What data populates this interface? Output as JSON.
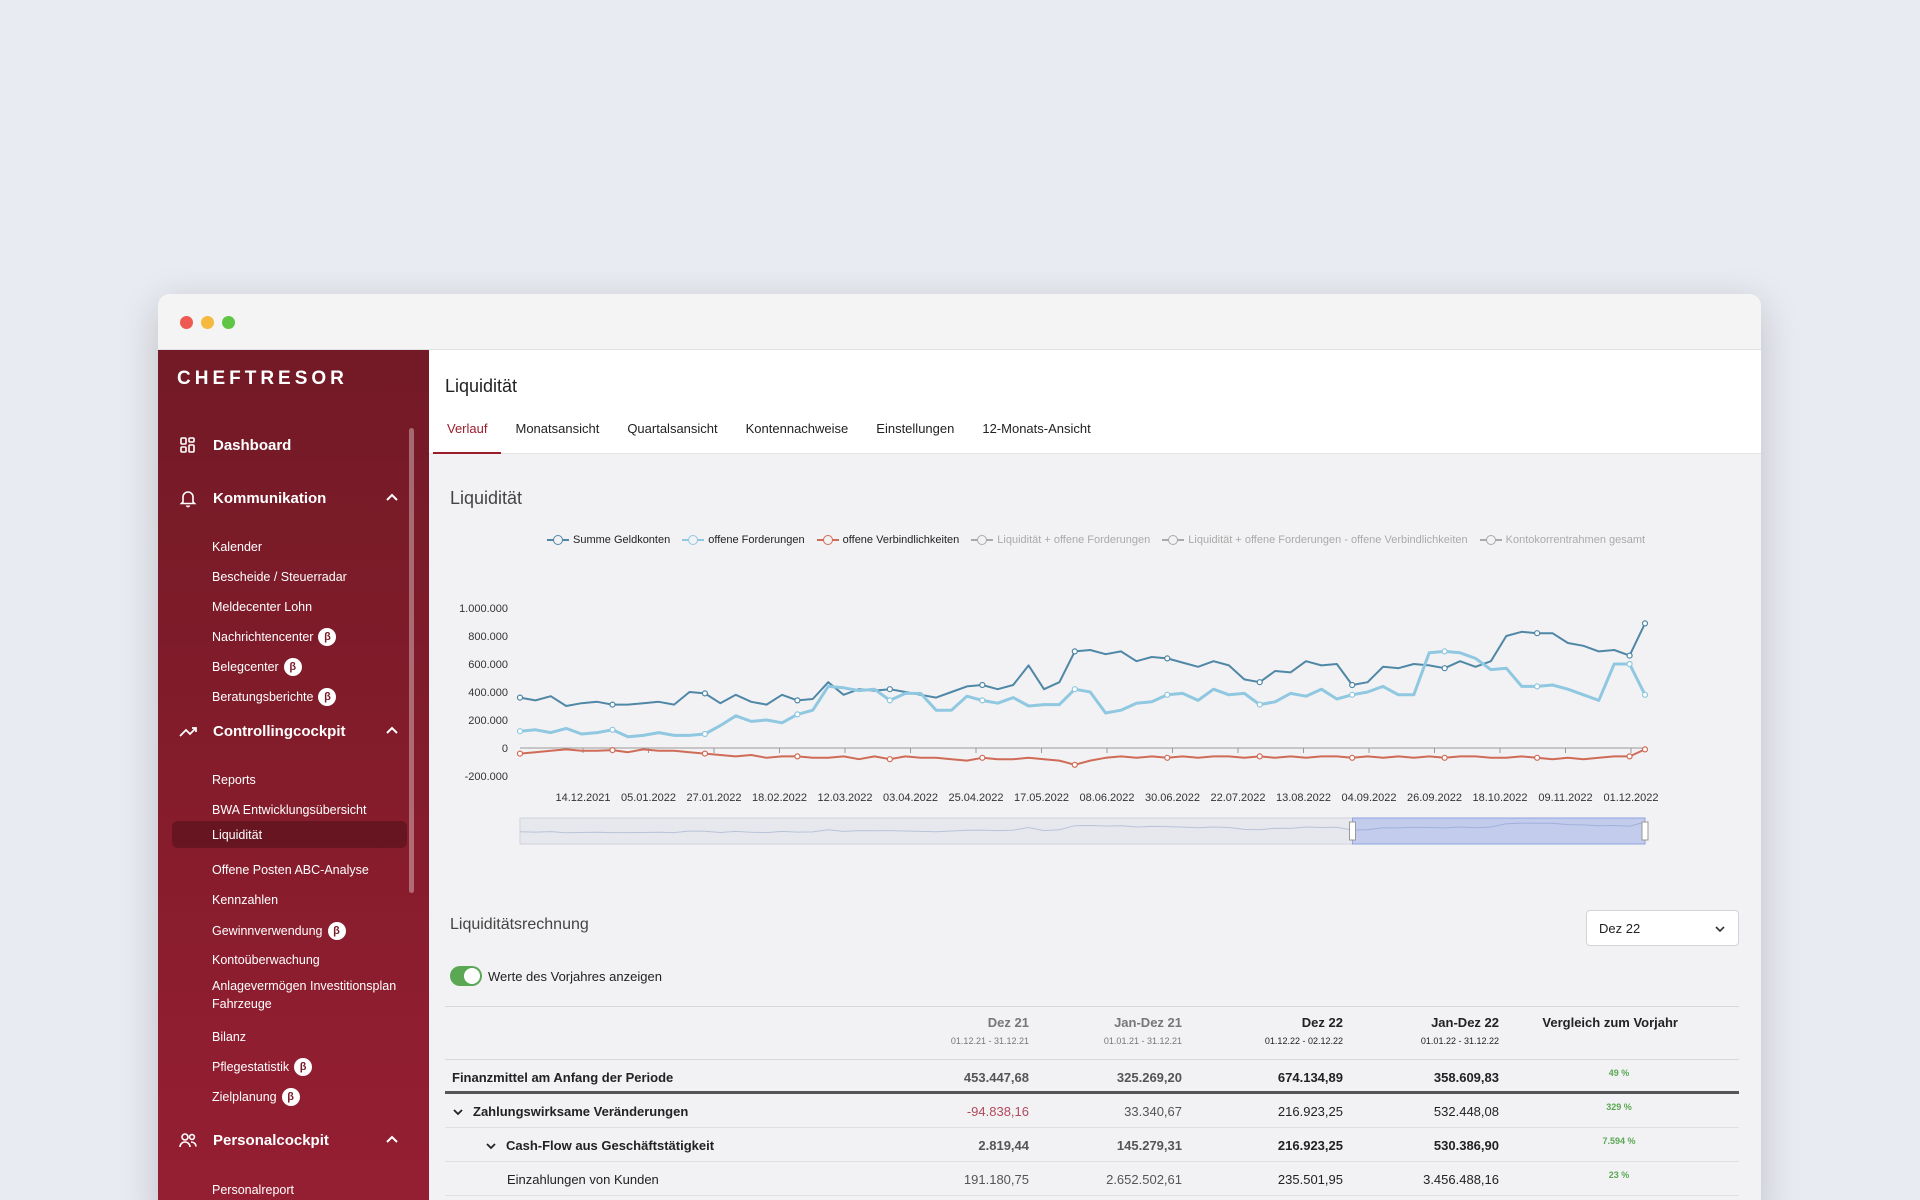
{
  "app": {
    "logo": "CHEFTRESOR"
  },
  "sidebar": {
    "sections": [
      {
        "label": "Dashboard",
        "icon": "grid-icon"
      },
      {
        "label": "Kommunikation",
        "icon": "bell-icon",
        "items": [
          "Kalender",
          "Bescheide / Steuerradar",
          "Meldecenter Lohn",
          "Nachrichtencenter",
          "Belegcenter",
          "Beratungsberichte"
        ]
      },
      {
        "label": "Controllingcockpit",
        "icon": "trend-icon",
        "items": [
          "Reports",
          "BWA  Entwicklungsübersicht",
          "Liquidität",
          "Offene Posten ABC-Analyse",
          "Kennzahlen",
          "Gewinnverwendung",
          "Kontoüberwachung",
          "Anlagevermögen Investitionsplan Fahrzeuge",
          "Bilanz",
          "Pflegestatistik",
          "Zielplanung"
        ]
      },
      {
        "label": "Personalcockpit",
        "icon": "users-icon",
        "items": [
          "Personalreport"
        ]
      }
    ],
    "beta_glyph": "β",
    "active_item": "Liquidität"
  },
  "header": {
    "title": "Liquidität",
    "tabs": [
      "Verlauf",
      "Monatsansicht",
      "Quartalsansicht",
      "Kontennachweise",
      "Einstellungen",
      "12-Monats-Ansicht"
    ]
  },
  "chart_section_title": "Liquidität",
  "chart_data": {
    "type": "line",
    "legend": [
      "Summe Geldkonten",
      "offene Forderungen",
      "offene Verbindlichkeiten",
      "Liquidität + offene Forderungen",
      "Liquidität + offene Forderungen - offene Verbindlichkeiten",
      "Kontokorrentrahmen gesamt"
    ],
    "legend_hidden": [
      false,
      false,
      false,
      true,
      true,
      true
    ],
    "y_ticks": [
      "1.000.000",
      "800.000",
      "600.000",
      "400.000",
      "200.000",
      "0",
      "-200.000"
    ],
    "ylim": [
      -200000,
      1000000
    ],
    "x_ticks": [
      "14.12.2021",
      "05.01.2022",
      "27.01.2022",
      "18.02.2022",
      "12.03.2022",
      "03.04.2022",
      "25.04.2022",
      "17.05.2022",
      "08.06.2022",
      "30.06.2022",
      "22.07.2022",
      "13.08.2022",
      "04.09.2022",
      "26.09.2022",
      "18.10.2022",
      "09.11.2022",
      "01.12.2022"
    ],
    "series": [
      {
        "name": "Summe Geldkonten",
        "color": "#4f87a6",
        "values": [
          360000,
          340000,
          370000,
          300000,
          320000,
          330000,
          310000,
          310000,
          320000,
          330000,
          310000,
          400000,
          390000,
          320000,
          380000,
          330000,
          310000,
          380000,
          340000,
          350000,
          470000,
          380000,
          420000,
          410000,
          420000,
          400000,
          380000,
          360000,
          400000,
          440000,
          450000,
          420000,
          450000,
          590000,
          420000,
          470000,
          690000,
          700000,
          670000,
          690000,
          620000,
          650000,
          640000,
          610000,
          580000,
          620000,
          590000,
          490000,
          470000,
          550000,
          540000,
          620000,
          590000,
          600000,
          450000,
          470000,
          580000,
          570000,
          600000,
          590000,
          570000,
          620000,
          580000,
          620000,
          800000,
          830000,
          820000,
          820000,
          750000,
          730000,
          690000,
          700000,
          660000,
          890000
        ]
      },
      {
        "name": "offene Forderungen",
        "color": "#8fc8e0",
        "values": [
          120000,
          130000,
          110000,
          140000,
          100000,
          110000,
          130000,
          80000,
          90000,
          110000,
          90000,
          90000,
          100000,
          160000,
          230000,
          190000,
          200000,
          180000,
          240000,
          270000,
          440000,
          430000,
          410000,
          420000,
          340000,
          390000,
          390000,
          270000,
          270000,
          370000,
          340000,
          320000,
          360000,
          300000,
          310000,
          310000,
          420000,
          400000,
          250000,
          270000,
          320000,
          330000,
          380000,
          390000,
          340000,
          420000,
          380000,
          390000,
          310000,
          330000,
          390000,
          370000,
          420000,
          350000,
          380000,
          400000,
          440000,
          380000,
          380000,
          680000,
          690000,
          680000,
          640000,
          560000,
          570000,
          440000,
          440000,
          450000,
          420000,
          380000,
          340000,
          600000,
          600000,
          380000
        ]
      },
      {
        "name": "offene Verbindlichkeiten",
        "color": "#cf6b56",
        "values": [
          -40000,
          -30000,
          -20000,
          -10000,
          -20000,
          -20000,
          -15000,
          -30000,
          -10000,
          -20000,
          -20000,
          -30000,
          -40000,
          -50000,
          -60000,
          -50000,
          -70000,
          -60000,
          -60000,
          -70000,
          -70000,
          -60000,
          -80000,
          -60000,
          -80000,
          -60000,
          -70000,
          -70000,
          -80000,
          -90000,
          -70000,
          -80000,
          -80000,
          -70000,
          -80000,
          -90000,
          -120000,
          -90000,
          -70000,
          -60000,
          -70000,
          -60000,
          -70000,
          -60000,
          -70000,
          -60000,
          -60000,
          -70000,
          -60000,
          -70000,
          -60000,
          -70000,
          -60000,
          -60000,
          -70000,
          -60000,
          -70000,
          -60000,
          -70000,
          -60000,
          -70000,
          -60000,
          -60000,
          -70000,
          -70000,
          -60000,
          -70000,
          -80000,
          -70000,
          -80000,
          -70000,
          -60000,
          -60000,
          -10000
        ]
      }
    ]
  },
  "table": {
    "section_title": "Liquiditätsrechnung",
    "period_select": "Dez 22",
    "toggle_label": "Werte des Vorjahres anzeigen",
    "headers": [
      {
        "label": "Dez 21",
        "range": "01.12.21 - 31.12.21"
      },
      {
        "label": "Jan-Dez 21",
        "range": "01.01.21 - 31.12.21"
      },
      {
        "label": "Dez 22",
        "range": "01.12.22 - 02.12.22"
      },
      {
        "label": "Jan-Dez 22",
        "range": "01.01.22 - 31.12.22"
      },
      {
        "label": "Vergleich zum Vorjahr",
        "range": ""
      }
    ],
    "rows": [
      {
        "label": "Finanzmittel am Anfang der Periode",
        "values": [
          "453.447,68",
          "325.269,20",
          "674.134,89",
          "358.609,83"
        ],
        "pct": "49 %"
      },
      {
        "label": "Zahlungswirksame Veränderungen",
        "values": [
          "-94.838,16",
          "33.340,67",
          "216.923,25",
          "532.448,08"
        ],
        "pct": "329 %"
      },
      {
        "label": "Cash-Flow aus Geschäftstätigkeit",
        "values": [
          "2.819,44",
          "145.279,31",
          "216.923,25",
          "530.386,90"
        ],
        "pct": "7.594 %"
      },
      {
        "label": "Einzahlungen von Kunden",
        "values": [
          "191.180,75",
          "2.652.502,61",
          "235.501,95",
          "3.456.488,16"
        ],
        "pct": "23 %"
      }
    ]
  }
}
